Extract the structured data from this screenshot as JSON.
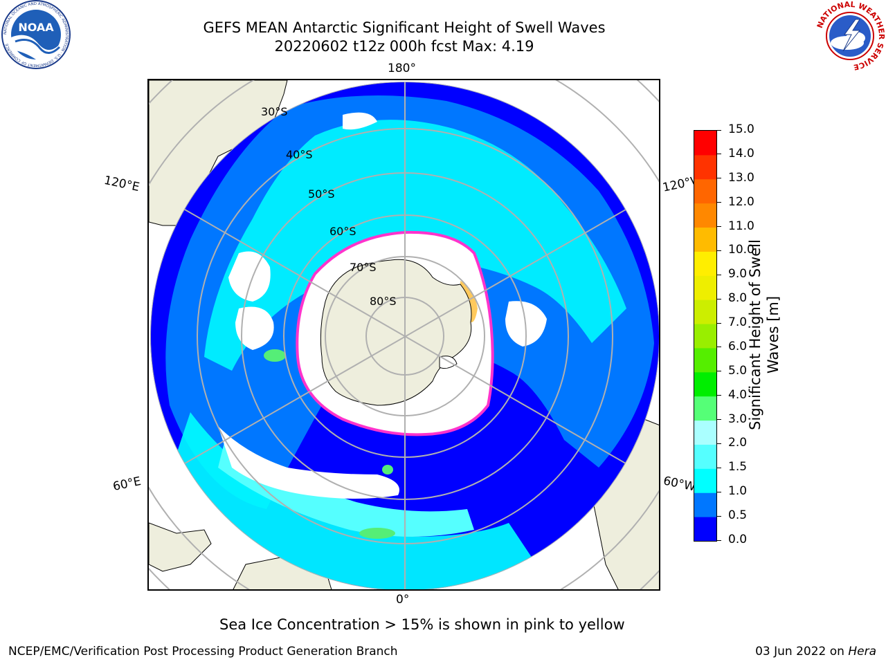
{
  "header": {
    "title_line1": "GEFS MEAN Antarctic Significant Height of Swell Waves",
    "title_line2": "20220602 t12z 000h fcst   Max: 4.19"
  },
  "logos": {
    "noaa": {
      "icon": "noaa-logo",
      "text": "NOAA",
      "ring_text": "NATIONAL OCEANIC AND ATMOSPHERIC ADMINISTRATION · U.S. DEPARTMENT OF COMMERCE"
    },
    "nws": {
      "icon": "nws-logo",
      "ring_text": "NATIONAL WEATHER SERVICE"
    }
  },
  "map": {
    "projection": "south-polar-stereographic",
    "longitude_labels": {
      "top": "180°",
      "bottom": "0°",
      "left_upper": "120°E",
      "left_lower": "60°E",
      "right_upper": "120°W",
      "right_lower": "60°W"
    },
    "latitude_labels": [
      "30°S",
      "40°S",
      "50°S",
      "60°S",
      "70°S",
      "80°S"
    ],
    "colors": {
      "land": "#eeeedd",
      "ocean_low": "#0000ff",
      "ocean_mid": "#0077ff",
      "ocean_high": "#00ffff",
      "ice_edge": "#ff33cc",
      "grid": "#b0b0b0"
    }
  },
  "colorbar": {
    "label": "Significant Height of Swell Waves [m]",
    "ticks": [
      "0.0",
      "0.5",
      "1.0",
      "1.5",
      "2.0",
      "3.0",
      "4.0",
      "5.0",
      "6.0",
      "7.0",
      "8.0",
      "9.0",
      "10.0",
      "11.0",
      "12.0",
      "13.0",
      "14.0",
      "15.0"
    ],
    "colors": [
      "#0000ff",
      "#0077ff",
      "#00ffff",
      "#55ffff",
      "#aaffff",
      "#55ff77",
      "#00ee00",
      "#55ee00",
      "#99ee00",
      "#ccee00",
      "#eeee00",
      "#ffee00",
      "#ffbb00",
      "#ff8800",
      "#ff6600",
      "#ff3300",
      "#ff0000"
    ]
  },
  "footer": {
    "note": "Sea Ice Concentration > 15% is shown in pink to yellow",
    "credit": "NCEP/EMC/Verification Post Processing Product Generation Branch",
    "date": "03 Jun 2022 on",
    "machine": "Hera"
  }
}
